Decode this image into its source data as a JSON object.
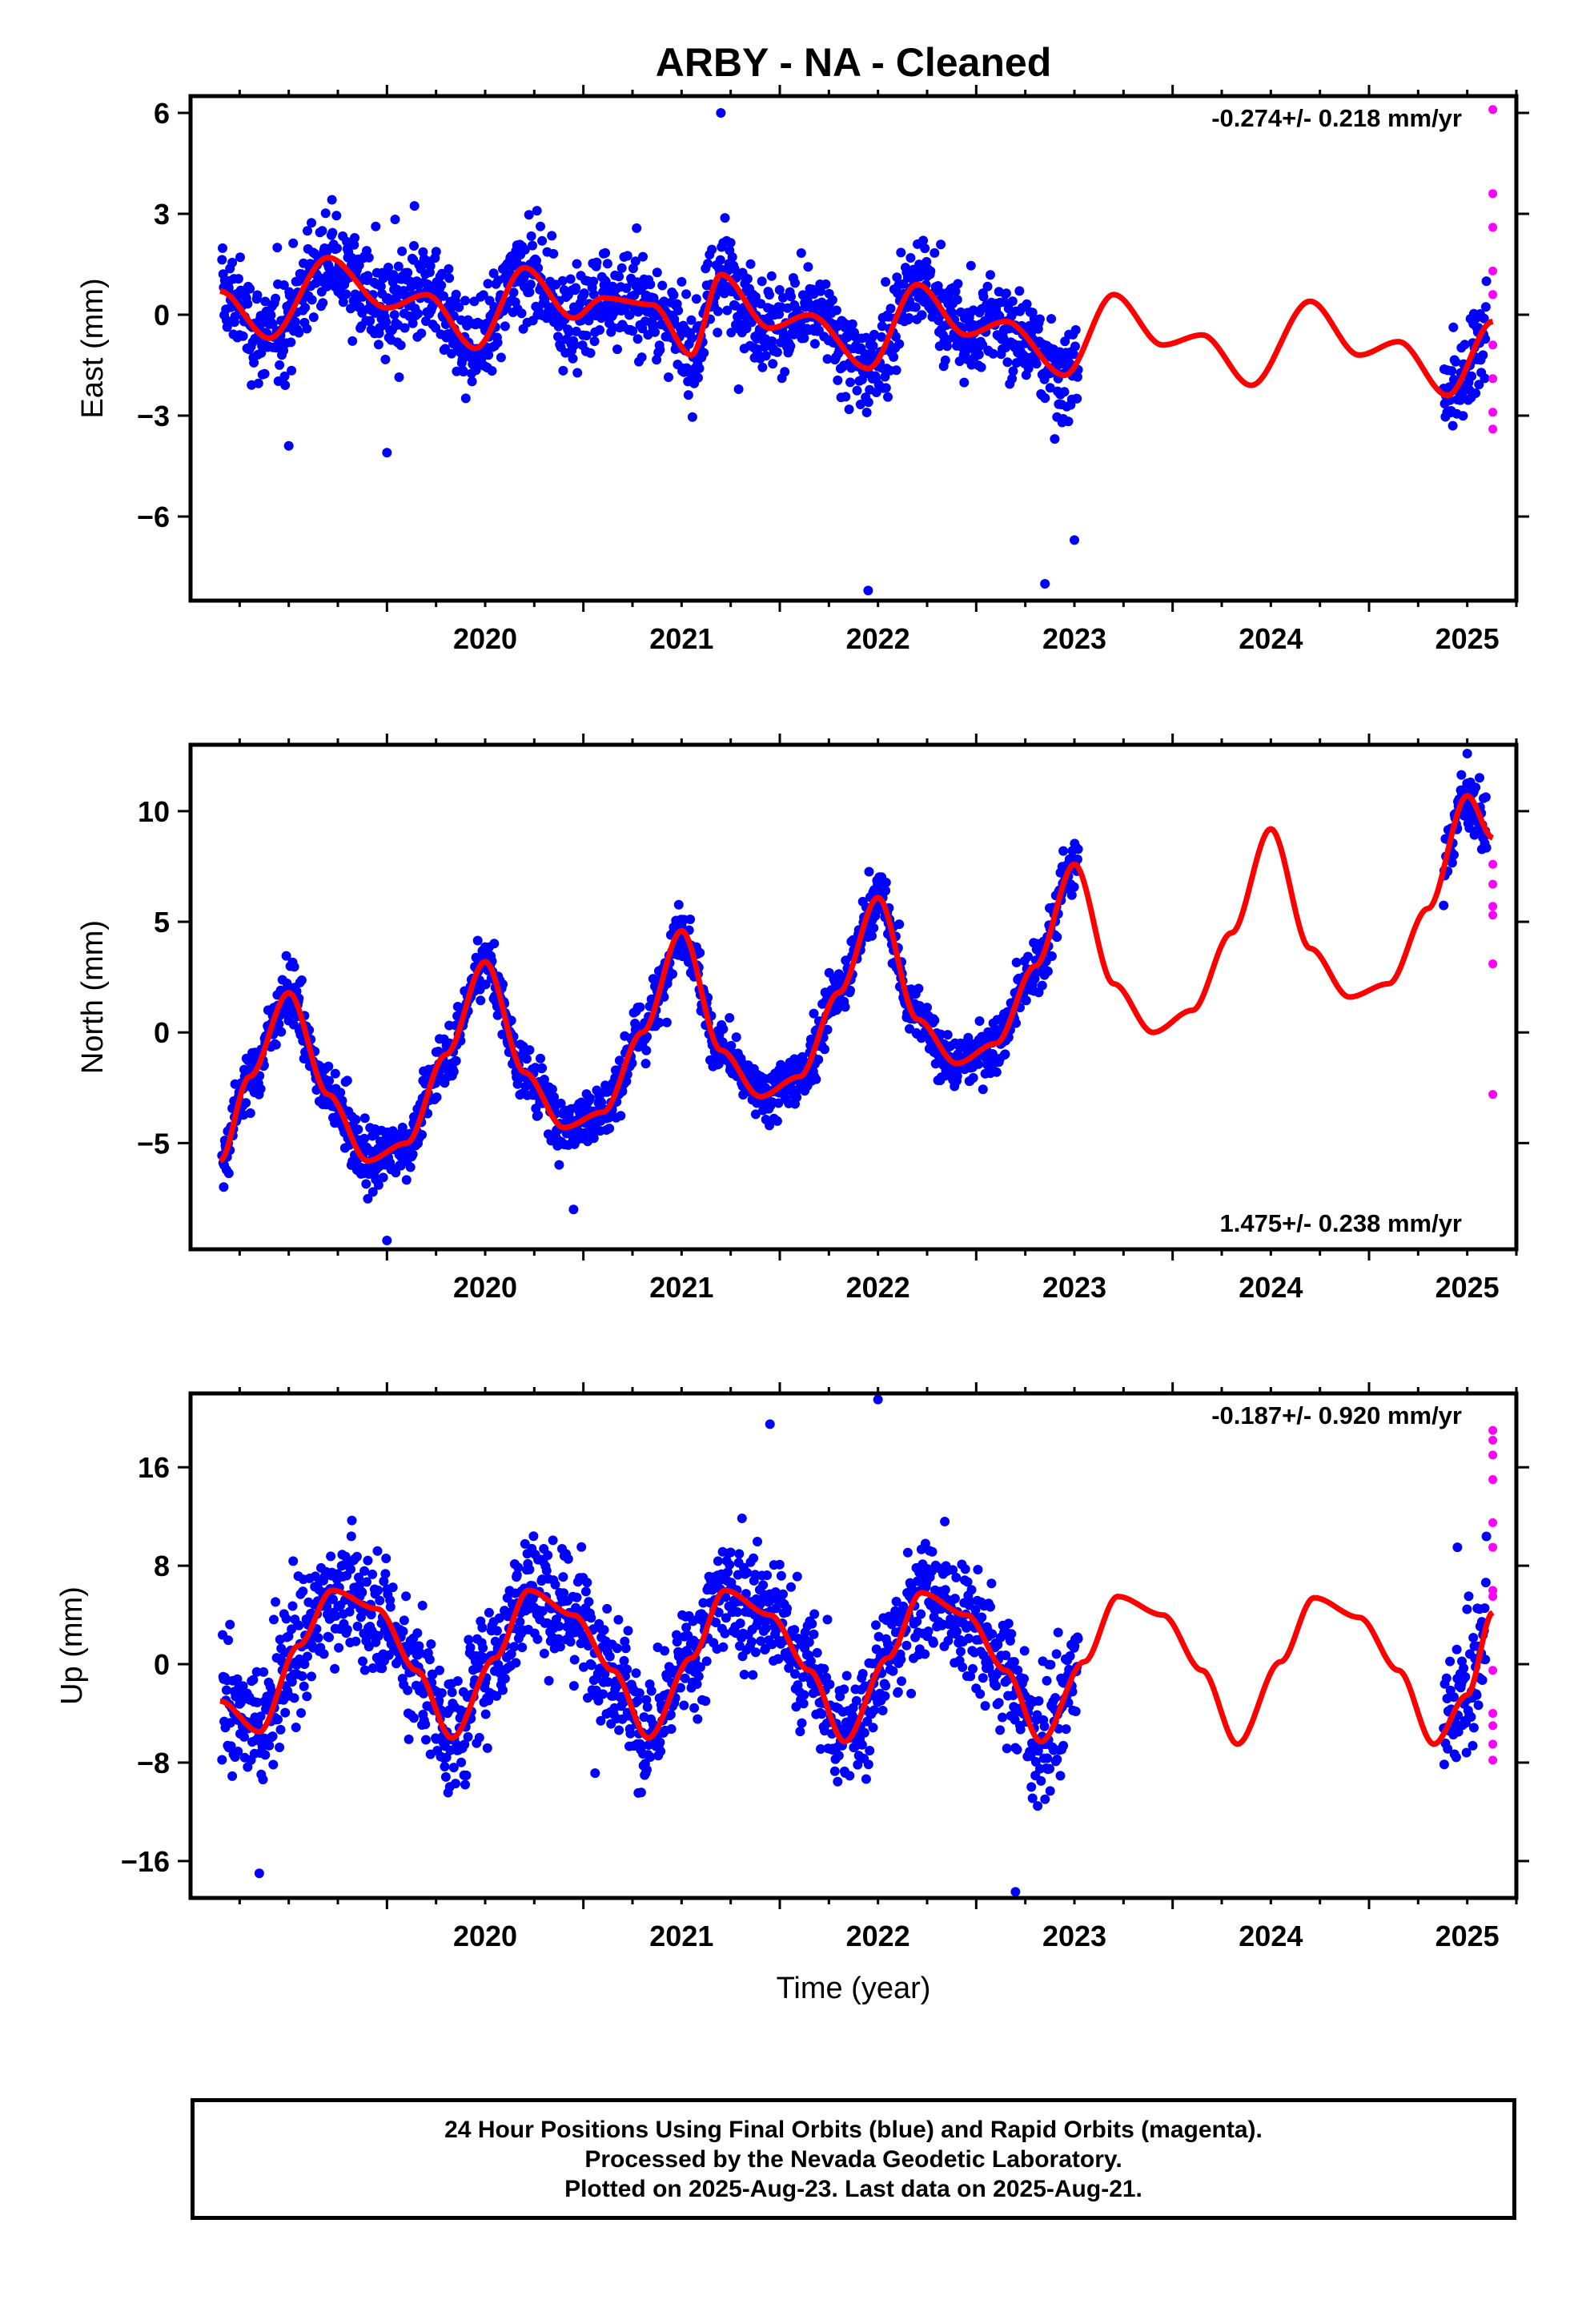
{
  "title": "ARBY  - NA - Cleaned",
  "colors": {
    "final_orbits": "#0000ff",
    "rapid_orbits": "#ff00ff",
    "fit_curve": "#ff0000",
    "frame": "#000000"
  },
  "chart_data": [
    {
      "type": "scatter",
      "ylabel": "East (mm)",
      "xlabel": "",
      "rate_label": "-0.274+/- 0.218 mm/yr",
      "rate_position": "top-right",
      "xlim": [
        2019.0,
        2025.75
      ],
      "ylim": [
        -8.5,
        6.5
      ],
      "x_ticks": [
        2020,
        2021,
        2022,
        2023,
        2024,
        2025
      ],
      "x_tick_labels": [
        "2020",
        "2021",
        "2022",
        "2023",
        "2024",
        "2025"
      ],
      "y_ticks": [
        6,
        3,
        0,
        -3,
        -6
      ],
      "y_tick_labels": [
        "6",
        "3",
        "0",
        "−3",
        "−6"
      ],
      "seasonal": {
        "a1": 0.5,
        "p1": 0.75,
        "a2": 0.6,
        "p2": 0.1,
        "noise": 1.2
      },
      "fit_curve": {
        "x": [
          2019.15,
          2019.4,
          2019.7,
          2020.0,
          2020.2,
          2020.45,
          2020.7,
          2020.95,
          2021.1,
          2021.35,
          2021.55,
          2021.7,
          2021.95,
          2022.15,
          2022.45,
          2022.7,
          2022.95,
          2023.15,
          2023.45,
          2023.7,
          2023.95,
          2024.15,
          2024.4,
          2024.7,
          2024.95,
          2025.15,
          2025.4,
          2025.63
        ],
        "y": [
          0.7,
          -0.7,
          1.7,
          0.2,
          0.6,
          -1.0,
          1.4,
          -0.1,
          0.5,
          0.3,
          -1.2,
          1.2,
          -0.4,
          0.0,
          -1.6,
          0.9,
          -0.6,
          -0.2,
          -1.8,
          0.6,
          -0.9,
          -0.6,
          -2.1,
          0.4,
          -1.2,
          -0.8,
          -2.4,
          -0.2
        ]
      },
      "final_points": [
        {
          "x": 2021.7,
          "y": 6.0
        },
        {
          "x": 2022.45,
          "y": -8.2
        },
        {
          "x": 2023.35,
          "y": -8.0
        },
        {
          "x": 2019.5,
          "y": -3.9
        },
        {
          "x": 2020.0,
          "y": -4.1
        },
        {
          "x": 2023.5,
          "y": -6.7
        }
      ],
      "rapid_points": {
        "x": 2025.63,
        "y": [
          6.1,
          3.6,
          2.6,
          1.3,
          0.6,
          -0.9,
          -1.9,
          -2.9,
          -3.4
        ]
      }
    },
    {
      "type": "scatter",
      "ylabel": "North (mm)",
      "xlabel": "",
      "rate_label": "1.475+/- 0.238 mm/yr",
      "rate_position": "bottom-right",
      "xlim": [
        2019.0,
        2025.75
      ],
      "ylim": [
        -9.8,
        13.0
      ],
      "x_ticks": [
        2020,
        2021,
        2022,
        2023,
        2024,
        2025
      ],
      "x_tick_labels": [
        "2020",
        "2021",
        "2022",
        "2023",
        "2024",
        "2025"
      ],
      "y_ticks": [
        10,
        5,
        0,
        -5
      ],
      "y_tick_labels": [
        "10",
        "5",
        "0",
        "−5"
      ],
      "seasonal": {
        "a1": 1.0,
        "p1": 0.2,
        "a2": 0.3,
        "p2": 0.0,
        "noise": 1.1
      },
      "fit_curve": {
        "x": [
          2019.15,
          2019.3,
          2019.5,
          2019.7,
          2019.9,
          2020.1,
          2020.3,
          2020.5,
          2020.7,
          2020.9,
          2021.1,
          2021.3,
          2021.5,
          2021.7,
          2021.9,
          2022.1,
          2022.3,
          2022.5,
          2022.7,
          2022.9,
          2023.1,
          2023.3,
          2023.5,
          2023.7,
          2023.9,
          2024.1,
          2024.3,
          2024.5,
          2024.7,
          2024.9,
          2025.1,
          2025.3,
          2025.5,
          2025.63
        ],
        "y": [
          -5.8,
          -2.0,
          1.8,
          -2.8,
          -5.8,
          -5.0,
          -1.0,
          3.2,
          -1.8,
          -4.3,
          -3.6,
          0.0,
          4.6,
          -0.8,
          -2.9,
          -2.0,
          1.8,
          6.1,
          0.6,
          -1.4,
          -0.5,
          3.0,
          7.6,
          2.2,
          0.0,
          1.0,
          4.5,
          9.2,
          3.8,
          1.6,
          2.2,
          5.6,
          10.7,
          8.8
        ]
      },
      "final_points": [
        {
          "x": 2020.0,
          "y": -9.4
        },
        {
          "x": 2025.5,
          "y": 12.6
        },
        {
          "x": 2020.95,
          "y": -8.0
        }
      ],
      "rapid_points": {
        "x": 2025.63,
        "y": [
          7.6,
          6.7,
          5.7,
          5.3,
          3.1,
          -2.8
        ]
      }
    },
    {
      "type": "scatter",
      "ylabel": "Up (mm)",
      "xlabel": "Time (year)",
      "rate_label": "-0.187+/- 0.920 mm/yr",
      "rate_position": "top-right",
      "xlim": [
        2019.0,
        2025.75
      ],
      "ylim": [
        -19.0,
        22.0
      ],
      "x_ticks": [
        2020,
        2021,
        2022,
        2023,
        2024,
        2025
      ],
      "x_tick_labels": [
        "2020",
        "2021",
        "2022",
        "2023",
        "2024",
        "2025"
      ],
      "y_ticks": [
        16,
        8,
        0,
        -8,
        -16
      ],
      "y_tick_labels": [
        "16",
        "8",
        "0",
        "−8",
        "−16"
      ],
      "seasonal": {
        "a1": 6.0,
        "p1": 0.72,
        "a2": 0.0,
        "p2": 0.0,
        "noise": 4.2
      },
      "fit_curve": {
        "x": [
          2019.15,
          2019.35,
          2019.55,
          2019.72,
          2019.95,
          2020.15,
          2020.33,
          2020.55,
          2020.72,
          2020.95,
          2021.15,
          2021.33,
          2021.55,
          2021.72,
          2021.95,
          2022.15,
          2022.33,
          2022.55,
          2022.72,
          2022.95,
          2023.15,
          2023.33,
          2023.55,
          2023.72,
          2023.95,
          2024.15,
          2024.33,
          2024.55,
          2024.72,
          2024.95,
          2025.15,
          2025.33,
          2025.5,
          2025.63
        ],
        "y": [
          -3.0,
          -5.5,
          1.5,
          6.0,
          4.5,
          -0.5,
          -6.0,
          0.5,
          6.0,
          4.0,
          -0.5,
          -6.0,
          0.5,
          6.0,
          4.0,
          -0.5,
          -6.3,
          0.5,
          5.8,
          4.0,
          -0.5,
          -6.3,
          0.2,
          5.5,
          4.0,
          -0.5,
          -6.5,
          0.2,
          5.4,
          3.8,
          -0.5,
          -6.5,
          -2.5,
          4.2
        ]
      },
      "final_points": [
        {
          "x": 2022.5,
          "y": 21.5
        },
        {
          "x": 2021.95,
          "y": 19.5
        },
        {
          "x": 2023.2,
          "y": -18.5
        },
        {
          "x": 2019.35,
          "y": -17.0
        },
        {
          "x": 2025.45,
          "y": 9.5
        }
      ],
      "rapid_points": {
        "x": 2025.63,
        "y": [
          19.0,
          18.2,
          17.0,
          15.0,
          11.5,
          9.5,
          6.0,
          5.5,
          -0.5,
          -4.0,
          -5.0,
          -6.5,
          -7.8
        ]
      }
    }
  ],
  "footer": {
    "line1": "24 Hour Positions Using Final Orbits (blue) and Rapid Orbits (magenta).",
    "line2": "Processed by the Nevada Geodetic Laboratory.",
    "line3": "Plotted on 2025-Aug-23. Last data on 2025-Aug-21."
  }
}
